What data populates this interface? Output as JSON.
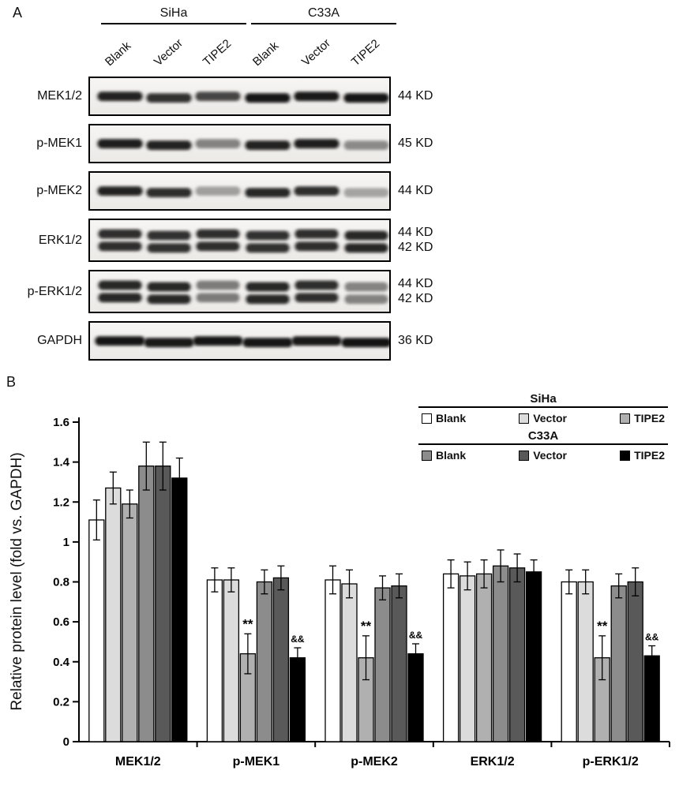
{
  "panel_a": {
    "label": "A",
    "cell_lines": [
      {
        "name": "SiHa"
      },
      {
        "name": "C33A"
      }
    ],
    "lane_labels": [
      "Blank",
      "Vector",
      "TIPE2",
      "Blank",
      "Vector",
      "TIPE2"
    ],
    "blots": [
      {
        "protein": "MEK1/2",
        "kd": [
          "44 KD"
        ],
        "bands": "single",
        "band_w": 56,
        "intensities": [
          0.88,
          0.8,
          0.7,
          0.95,
          0.93,
          0.95
        ]
      },
      {
        "protein": "p-MEK1",
        "kd": [
          "45 KD"
        ],
        "bands": "single",
        "band_w": 56,
        "intensities": [
          0.9,
          0.88,
          0.42,
          0.88,
          0.9,
          0.38
        ]
      },
      {
        "protein": "p-MEK2",
        "kd": [
          "44 KD"
        ],
        "bands": "single",
        "band_w": 56,
        "intensities": [
          0.88,
          0.82,
          0.3,
          0.85,
          0.82,
          0.28
        ]
      },
      {
        "protein": "ERK1/2",
        "kd": [
          "44 KD",
          "42 KD"
        ],
        "bands": "double",
        "band_w": 54,
        "intensities": [
          0.82,
          0.8,
          0.82,
          0.8,
          0.82,
          0.85
        ]
      },
      {
        "protein": "p-ERK1/2",
        "kd": [
          "44 KD",
          "42 KD"
        ],
        "bands": "double",
        "band_w": 54,
        "intensities": [
          0.85,
          0.85,
          0.45,
          0.85,
          0.82,
          0.42
        ]
      },
      {
        "protein": "GAPDH",
        "kd": [
          "36 KD"
        ],
        "bands": "single",
        "band_w": 62,
        "intensities": [
          0.95,
          0.93,
          0.95,
          0.95,
          0.93,
          0.96
        ]
      }
    ]
  },
  "panel_b": {
    "label": "B",
    "legend": {
      "siha_title": "SiHa",
      "c33a_title": "C33A",
      "siha_entries": [
        {
          "label": "Blank",
          "color": "#ffffff"
        },
        {
          "label": "Vector",
          "color": "#dcdcdc"
        },
        {
          "label": "TIPE2",
          "color": "#b0b0b0"
        }
      ],
      "c33a_entries": [
        {
          "label": "Blank",
          "color": "#8c8c8c"
        },
        {
          "label": "Vector",
          "color": "#595959"
        },
        {
          "label": "TIPE2",
          "color": "#000000"
        }
      ]
    }
  },
  "chart_data": {
    "type": "bar",
    "title": "",
    "xlabel": "",
    "ylabel": "Relative protein level (fold vs. GAPDH)",
    "ylim": [
      0,
      1.6
    ],
    "yticks": [
      "0",
      "0.2",
      "0.4",
      "0.6",
      "0.8",
      "1",
      "1.2",
      "1.4",
      "1.6"
    ],
    "grid": false,
    "legend_position": "top-right",
    "categories": [
      "MEK1/2",
      "p-MEK1",
      "p-MEK2",
      "ERK1/2",
      "p-ERK1/2"
    ],
    "series": [
      {
        "name": "SiHa Blank",
        "color": "#ffffff",
        "values": [
          1.11,
          0.81,
          0.81,
          0.84,
          0.8
        ],
        "errors": [
          0.1,
          0.06,
          0.07,
          0.07,
          0.06
        ]
      },
      {
        "name": "SiHa Vector",
        "color": "#dcdcdc",
        "values": [
          1.27,
          0.81,
          0.79,
          0.83,
          0.8
        ],
        "errors": [
          0.08,
          0.06,
          0.07,
          0.07,
          0.06
        ]
      },
      {
        "name": "SiHa TIPE2",
        "color": "#b0b0b0",
        "values": [
          1.19,
          0.44,
          0.42,
          0.84,
          0.42
        ],
        "errors": [
          0.07,
          0.1,
          0.11,
          0.07,
          0.11
        ]
      },
      {
        "name": "C33A Blank",
        "color": "#8c8c8c",
        "values": [
          1.38,
          0.8,
          0.77,
          0.88,
          0.78
        ],
        "errors": [
          0.12,
          0.06,
          0.06,
          0.08,
          0.06
        ]
      },
      {
        "name": "C33A Vector",
        "color": "#595959",
        "values": [
          1.38,
          0.82,
          0.78,
          0.87,
          0.8
        ],
        "errors": [
          0.12,
          0.06,
          0.06,
          0.07,
          0.07
        ]
      },
      {
        "name": "C33A TIPE2",
        "color": "#000000",
        "values": [
          1.32,
          0.42,
          0.44,
          0.85,
          0.43
        ],
        "errors": [
          0.1,
          0.05,
          0.05,
          0.06,
          0.05
        ]
      }
    ],
    "annotations": [
      {
        "category": "p-MEK1",
        "series_index": 2,
        "text": "**"
      },
      {
        "category": "p-MEK1",
        "series_index": 5,
        "text": "&&"
      },
      {
        "category": "p-MEK2",
        "series_index": 2,
        "text": "**"
      },
      {
        "category": "p-MEK2",
        "series_index": 5,
        "text": "&&"
      },
      {
        "category": "p-ERK1/2",
        "series_index": 2,
        "text": "**"
      },
      {
        "category": "p-ERK1/2",
        "series_index": 5,
        "text": "&&"
      }
    ]
  }
}
